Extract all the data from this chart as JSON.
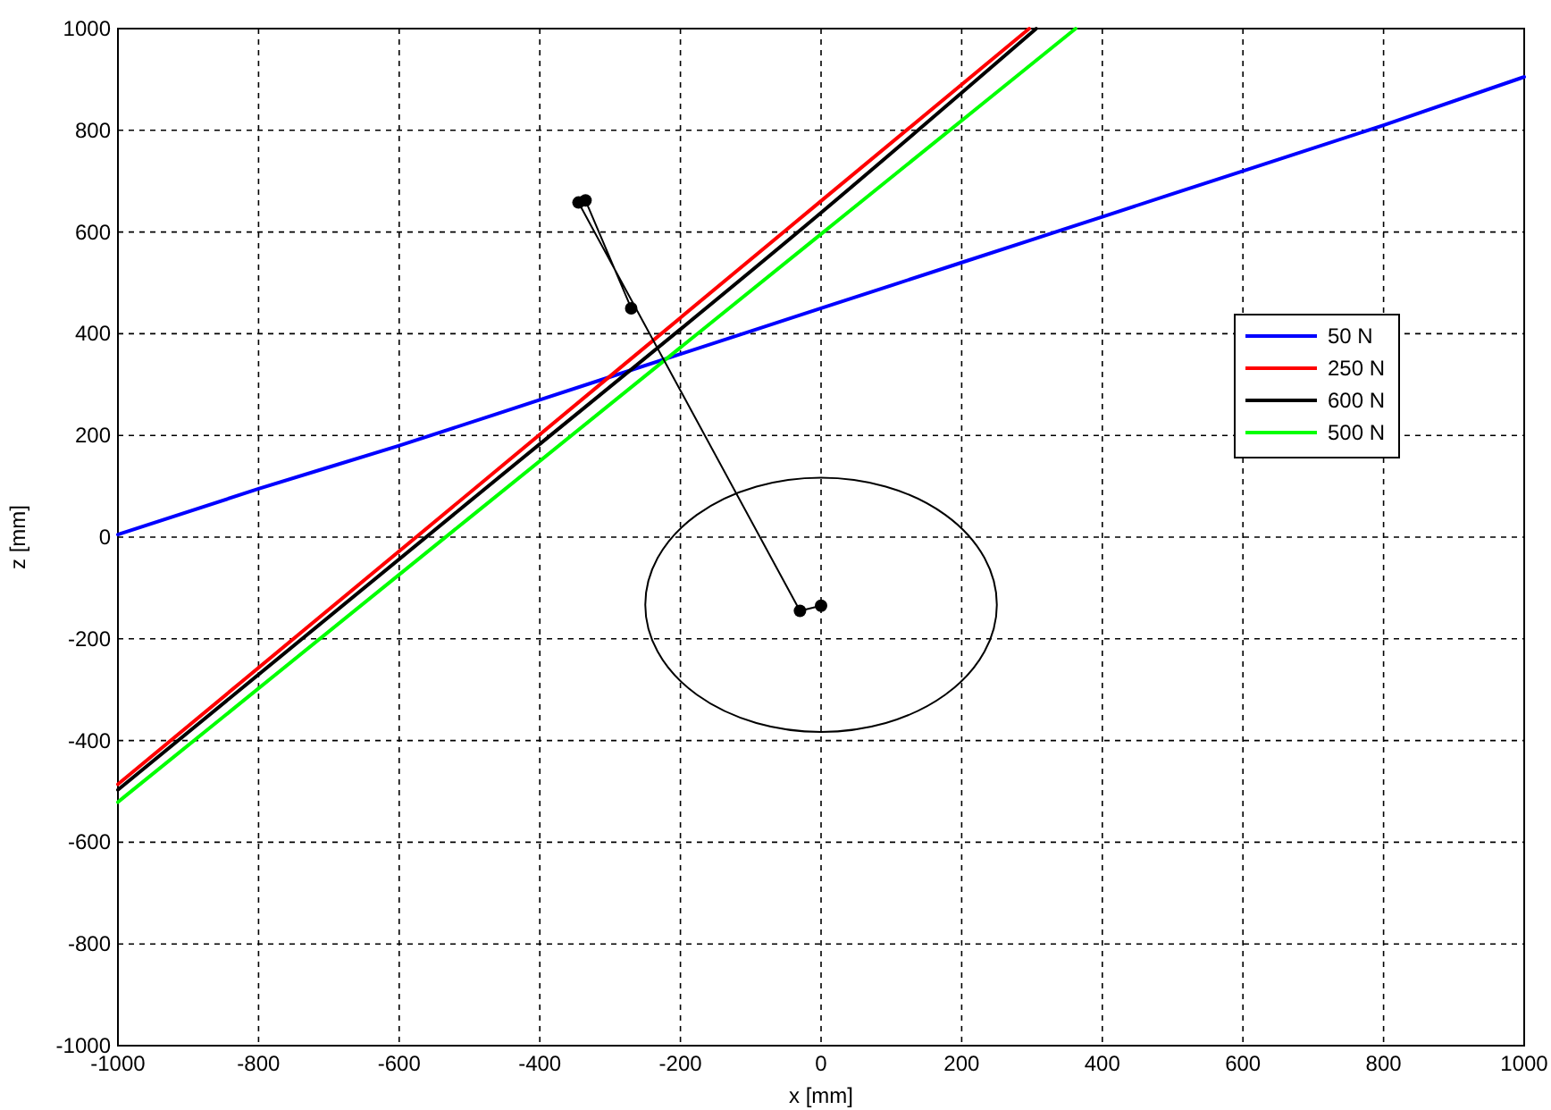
{
  "chart_data": {
    "type": "line",
    "xlabel": "x [mm]",
    "ylabel": "z [mm]",
    "xlim": [
      -1000,
      1000
    ],
    "xticks": [
      -1000,
      -800,
      -600,
      -400,
      -200,
      0,
      200,
      400,
      600,
      800,
      1000
    ],
    "ylim": [
      -1000,
      1000
    ],
    "yticks": [
      -1000,
      -800,
      -600,
      -400,
      -200,
      0,
      200,
      400,
      600,
      800,
      1000
    ],
    "grid": true,
    "legend": "right",
    "marker": "none",
    "line_style": "solid",
    "series": [
      {
        "name": "50 N",
        "color": "#0000ff",
        "x": [
          -1000,
          -800,
          -600,
          -400,
          -200,
          0,
          200,
          400,
          600,
          800,
          1000
        ],
        "values": [
          5,
          95,
          180,
          270,
          360,
          450,
          540,
          630,
          720,
          810,
          905
        ]
      },
      {
        "name": "250 N",
        "color": "#ff0000",
        "x": [
          -1000,
          -500,
          0,
          296
        ],
        "values": [
          -486,
          87,
          661,
          1000
        ]
      },
      {
        "name": "600 N",
        "color": "#000000",
        "x": [
          -1000,
          -500,
          0,
          306
        ],
        "values": [
          -497,
          70,
          638,
          1000
        ]
      },
      {
        "name": "500 N",
        "color": "#00ff00",
        "x": [
          -1000,
          -500,
          0,
          362
        ],
        "values": [
          -521,
          38,
          596,
          1000
        ]
      },
      {
        "color": "#000000",
        "marker": "circle",
        "x": [
          -270,
          -335,
          -345,
          -30,
          0
        ],
        "values": [
          450,
          662,
          658,
          -145,
          -135
        ]
      }
    ]
  }
}
